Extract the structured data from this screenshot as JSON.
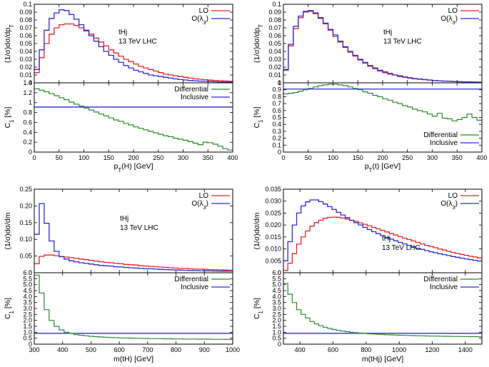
{
  "colors": {
    "lo": "#e8242a",
    "ol3": "#2b2bd6",
    "diff": "#2a8a2a",
    "incl": "#2b2bd6"
  },
  "chart_data": [
    {
      "type": "line",
      "title": "",
      "xlabel": "p_T(H) [GeV]",
      "top": {
        "ylabel": "(1/σ)dσ/dp_T",
        "ylim": [
          0,
          0.1
        ],
        "yticks": [
          "0",
          "0.01",
          "0.02",
          "0.03",
          "0.04",
          "0.05",
          "0.06",
          "0.07",
          "0.08",
          "0.09",
          "0.1"
        ],
        "legend": [
          "LO",
          "O(λ3)"
        ],
        "annotation": [
          "tHj",
          "13 TeV LHC"
        ],
        "series": [
          {
            "name": "LO",
            "values": [
              0.013,
              0.032,
              0.05,
              0.062,
              0.07,
              0.074,
              0.075,
              0.075,
              0.073,
              0.07,
              0.066,
              0.062,
              0.057,
              0.052,
              0.047,
              0.042,
              0.038,
              0.034,
              0.03,
              0.027,
              0.024,
              0.021,
              0.019,
              0.017,
              0.015,
              0.013,
              0.011,
              0.01,
              0.009,
              0.008,
              0.007,
              0.006,
              0.005,
              0.0045,
              0.004,
              0.0035,
              0.003,
              0.0027,
              0.0024,
              0.002
            ]
          },
          {
            "name": "O(λ3)",
            "values": [
              0.017,
              0.042,
              0.067,
              0.082,
              0.089,
              0.093,
              0.092,
              0.087,
              0.081,
              0.074,
              0.067,
              0.06,
              0.053,
              0.046,
              0.04,
              0.035,
              0.03,
              0.026,
              0.022,
              0.019,
              0.016,
              0.014,
              0.012,
              0.01,
              0.009,
              0.008,
              0.007,
              0.006,
              0.005,
              0.0042,
              0.0036,
              0.003,
              0.0026,
              0.0022,
              0.0019,
              0.0016,
              0.0014,
              0.0012,
              0.001,
              0.0009
            ]
          }
        ]
      },
      "bottom": {
        "ylabel": "C1 [%]",
        "ylim": [
          0,
          1.4
        ],
        "yticks": [
          "0",
          "0.2",
          "0.4",
          "0.6",
          "0.8",
          "1",
          "1.2",
          "1.4"
        ],
        "legend": [
          "Differential",
          "Inclusive"
        ],
        "legend_pos": "top-right",
        "inclusive": 0.91,
        "differential": [
          1.28,
          1.25,
          1.22,
          1.18,
          1.14,
          1.1,
          1.06,
          1.01,
          0.97,
          0.93,
          0.89,
          0.85,
          0.81,
          0.77,
          0.73,
          0.69,
          0.65,
          0.62,
          0.58,
          0.55,
          0.51,
          0.48,
          0.45,
          0.42,
          0.39,
          0.36,
          0.33,
          0.31,
          0.28,
          0.26,
          0.24,
          0.21,
          0.18,
          0.15,
          0.2,
          0.19,
          0.16,
          0.12,
          0.07,
          0.04
        ]
      },
      "x": {
        "min": 0,
        "max": 400,
        "bin": 10,
        "ticks": [
          "0",
          "50",
          "100",
          "150",
          "200",
          "250",
          "300",
          "350",
          "400"
        ]
      }
    },
    {
      "type": "line",
      "title": "",
      "xlabel": "p_T(t) [GeV]",
      "top": {
        "ylabel": "(1/σ)dσ/dp_T",
        "ylim": [
          0,
          0.1
        ],
        "yticks": [
          "0",
          "0.01",
          "0.02",
          "0.03",
          "0.04",
          "0.05",
          "0.06",
          "0.07",
          "0.08",
          "0.09",
          "0.1"
        ],
        "legend": [
          "LO",
          "O(λ3)"
        ],
        "annotation": [
          "tHj",
          "13 TeV LHC"
        ],
        "series": [
          {
            "name": "LO",
            "values": [
              0.016,
              0.047,
              0.069,
              0.083,
              0.09,
              0.091,
              0.088,
              0.082,
              0.075,
              0.067,
              0.059,
              0.052,
              0.045,
              0.039,
              0.034,
              0.029,
              0.025,
              0.021,
              0.018,
              0.015,
              0.013,
              0.011,
              0.01,
              0.008,
              0.007,
              0.006,
              0.005,
              0.0045,
              0.004,
              0.0035,
              0.003,
              0.0026,
              0.0023,
              0.002,
              0.0017,
              0.0015,
              0.0013,
              0.0011,
              0.001,
              0.0009
            ]
          },
          {
            "name": "O(λ3)",
            "values": [
              0.017,
              0.049,
              0.072,
              0.085,
              0.091,
              0.092,
              0.089,
              0.083,
              0.076,
              0.068,
              0.061,
              0.053,
              0.046,
              0.04,
              0.035,
              0.03,
              0.026,
              0.022,
              0.019,
              0.016,
              0.014,
              0.012,
              0.01,
              0.009,
              0.0075,
              0.0065,
              0.0055,
              0.0048,
              0.0042,
              0.0036,
              0.003,
              0.0026,
              0.0022,
              0.0019,
              0.0016,
              0.0014,
              0.0012,
              0.001,
              0.0009,
              0.0008
            ]
          }
        ]
      },
      "bottom": {
        "ylabel": "C1 [%]",
        "ylim": [
          0,
          1.0
        ],
        "yticks": [
          "0",
          "0.1",
          "0.2",
          "0.3",
          "0.4",
          "0.5",
          "0.6",
          "0.7",
          "0.8",
          "0.9",
          "1"
        ],
        "legend": [
          "Differential",
          "Inclusive"
        ],
        "legend_pos": "bottom-right",
        "inclusive": 0.91,
        "differential": [
          0.84,
          0.85,
          0.86,
          0.88,
          0.9,
          0.92,
          0.94,
          0.96,
          0.97,
          0.98,
          0.98,
          0.97,
          0.96,
          0.94,
          0.92,
          0.9,
          0.87,
          0.85,
          0.82,
          0.8,
          0.77,
          0.75,
          0.72,
          0.7,
          0.67,
          0.65,
          0.62,
          0.6,
          0.58,
          0.55,
          0.52,
          0.56,
          0.49,
          0.48,
          0.45,
          0.47,
          0.5,
          0.55,
          0.5,
          0.46
        ]
      },
      "x": {
        "min": 0,
        "max": 400,
        "bin": 10,
        "ticks": [
          "0",
          "50",
          "100",
          "150",
          "200",
          "250",
          "300",
          "350",
          "400"
        ]
      }
    },
    {
      "type": "line",
      "title": "",
      "xlabel": "m(tH) [GeV]",
      "top": {
        "ylabel": "(1/σ)dσ/dm",
        "ylim": [
          0,
          0.25
        ],
        "yticks": [
          "0",
          "0.05",
          "0.10",
          "0.15",
          "0.20",
          "0.25"
        ],
        "legend": [
          "LO",
          "O(λ3)"
        ],
        "annotation": [
          "tHj",
          "13 TeV LHC"
        ],
        "series": [
          {
            "name": "LO",
            "values": [
              0.027,
              0.049,
              0.053,
              0.053,
              0.051,
              0.049,
              0.047,
              0.045,
              0.043,
              0.041,
              0.039,
              0.037,
              0.035,
              0.033,
              0.031,
              0.03,
              0.028,
              0.027,
              0.025,
              0.024,
              0.023,
              0.021,
              0.02,
              0.019,
              0.018,
              0.017,
              0.016,
              0.015,
              0.014,
              0.013,
              0.013,
              0.012,
              0.011,
              0.011,
              0.01,
              0.0095,
              0.009,
              0.0085,
              0.008,
              0.0075
            ]
          },
          {
            "name": "O(λ3)",
            "values": [
              0.115,
              0.207,
              0.148,
              0.095,
              0.064,
              0.048,
              0.041,
              0.036,
              0.033,
              0.03,
              0.028,
              0.026,
              0.024,
              0.022,
              0.021,
              0.02,
              0.018,
              0.017,
              0.016,
              0.015,
              0.014,
              0.013,
              0.012,
              0.012,
              0.011,
              0.01,
              0.0095,
              0.009,
              0.0085,
              0.008,
              0.0075,
              0.007,
              0.0066,
              0.0062,
              0.0058,
              0.0055,
              0.0052,
              0.005,
              0.0047,
              0.0045
            ]
          }
        ]
      },
      "bottom": {
        "ylabel": "C1 [%]",
        "ylim": [
          0,
          6.0
        ],
        "yticks": [
          "0",
          "0.5",
          "1.0",
          "1.5",
          "2.0",
          "2.5",
          "3.0",
          "3.5",
          "4.0",
          "4.5",
          "5.0",
          "5.5",
          "6.0"
        ],
        "legend": [
          "Differential",
          "Inclusive"
        ],
        "legend_pos": "top-right",
        "inclusive": 0.91,
        "differential": [
          5.8,
          4.3,
          2.9,
          2.0,
          1.5,
          1.2,
          1.0,
          0.9,
          0.8,
          0.75,
          0.7,
          0.66,
          0.63,
          0.6,
          0.58,
          0.56,
          0.55,
          0.53,
          0.52,
          0.51,
          0.5,
          0.49,
          0.48,
          0.47,
          0.47,
          0.46,
          0.45,
          0.45,
          0.44,
          0.44,
          0.43,
          0.43,
          0.43,
          0.42,
          0.42,
          0.42,
          0.41,
          0.41,
          0.41,
          0.4
        ]
      },
      "x": {
        "min": 300,
        "max": 1000,
        "bin": 17.5,
        "ticks": [
          "300",
          "400",
          "500",
          "600",
          "700",
          "800",
          "900",
          "1000"
        ]
      }
    },
    {
      "type": "line",
      "title": "",
      "xlabel": "m(tHj) [GeV]",
      "top": {
        "ylabel": "(1/σ)dσ/dm",
        "ylim": [
          0,
          0.035
        ],
        "yticks": [
          "0",
          "0.005",
          "0.010",
          "0.015",
          "0.020",
          "0.025",
          "0.030",
          "0.035"
        ],
        "legend": [
          "LO",
          "O(λ3)"
        ],
        "annotation": [
          "tHj",
          "13 TeV LHC"
        ],
        "series": [
          {
            "name": "LO",
            "values": [
              0.001,
              0.004,
              0.008,
              0.012,
              0.015,
              0.0175,
              0.0195,
              0.021,
              0.022,
              0.0228,
              0.0232,
              0.0233,
              0.0232,
              0.0229,
              0.0225,
              0.022,
              0.0215,
              0.0209,
              0.0203,
              0.0197,
              0.019,
              0.0184,
              0.0177,
              0.0171,
              0.0164,
              0.0158,
              0.0151,
              0.0145,
              0.0139,
              0.0133,
              0.0127,
              0.0121,
              0.0115,
              0.011,
              0.0105,
              0.01,
              0.0095,
              0.009,
              0.0085,
              0.0081,
              0.0077,
              0.0073,
              0.0069,
              0.0066,
              0.0062
            ]
          },
          {
            "name": "O(λ3)",
            "values": [
              0.005,
              0.013,
              0.02,
              0.025,
              0.028,
              0.0297,
              0.0305,
              0.0305,
              0.0298,
              0.0288,
              0.0277,
              0.0265,
              0.0253,
              0.0242,
              0.0231,
              0.022,
              0.021,
              0.02,
              0.019,
              0.0181,
              0.0172,
              0.0164,
              0.0156,
              0.0148,
              0.0141,
              0.0134,
              0.0127,
              0.0121,
              0.0115,
              0.0109,
              0.0103,
              0.0098,
              0.0093,
              0.0088,
              0.0084,
              0.008,
              0.0076,
              0.0072,
              0.0068,
              0.0065,
              0.0061,
              0.0058,
              0.0055,
              0.0052,
              0.0049
            ]
          }
        ]
      },
      "bottom": {
        "ylabel": "C1 [%]",
        "ylim": [
          0,
          6.0
        ],
        "yticks": [
          "0",
          "0.5",
          "1.0",
          "1.5",
          "2.0",
          "2.5",
          "3.0",
          "3.5",
          "4.0",
          "4.5",
          "5.0",
          "5.5",
          "6.0"
        ],
        "legend": [
          "Differential",
          "Inclusive"
        ],
        "legend_pos": "top-right",
        "inclusive": 0.91,
        "differential": [
          5.1,
          4.2,
          3.5,
          2.9,
          2.5,
          2.2,
          1.9,
          1.7,
          1.55,
          1.42,
          1.32,
          1.23,
          1.16,
          1.1,
          1.05,
          1.0,
          0.96,
          0.93,
          0.9,
          0.87,
          0.85,
          0.83,
          0.81,
          0.79,
          0.78,
          0.76,
          0.75,
          0.74,
          0.73,
          0.72,
          0.71,
          0.7,
          0.69,
          0.68,
          0.68,
          0.67,
          0.66,
          0.66,
          0.65,
          0.65,
          0.64,
          0.64,
          0.63,
          0.63,
          0.62
        ]
      },
      "x": {
        "min": 300,
        "max": 1500,
        "bin": 26.67,
        "ticks": [
          "400",
          "600",
          "800",
          "1000",
          "1200",
          "1400"
        ],
        "tickvals": [
          400,
          600,
          800,
          1000,
          1200,
          1400
        ]
      }
    }
  ]
}
